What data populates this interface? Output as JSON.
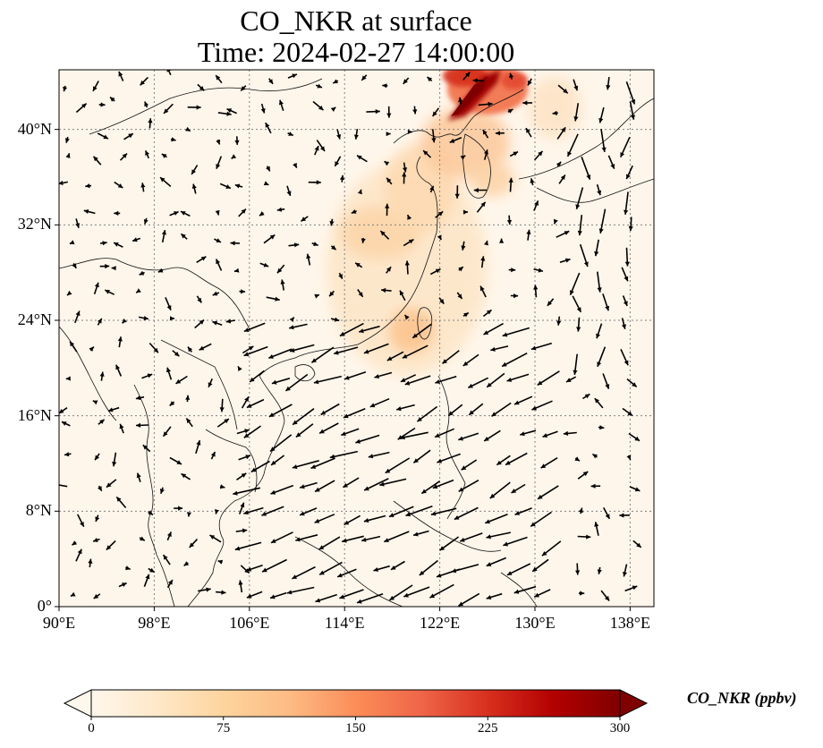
{
  "title": {
    "line1": "CO_NKR at surface",
    "line2": "Time: 2024-02-27 14:00:00"
  },
  "map": {
    "variable": "CO_NKR",
    "level": "surface",
    "lon_range": [
      90,
      140
    ],
    "lat_range": [
      0,
      45
    ],
    "lon_ticks": [
      {
        "value": 90,
        "label": "90°E"
      },
      {
        "value": 98,
        "label": "98°E"
      },
      {
        "value": 106,
        "label": "106°E"
      },
      {
        "value": 114,
        "label": "114°E"
      },
      {
        "value": 122,
        "label": "122°E"
      },
      {
        "value": 130,
        "label": "130°E"
      },
      {
        "value": 138,
        "label": "138°E"
      }
    ],
    "lat_ticks": [
      {
        "value": 0,
        "label": "0°"
      },
      {
        "value": 8,
        "label": "8°N"
      },
      {
        "value": 16,
        "label": "16°N"
      },
      {
        "value": 24,
        "label": "24°N"
      },
      {
        "value": 32,
        "label": "32°N"
      },
      {
        "value": 40,
        "label": "40°N"
      }
    ],
    "gridlines": "dotted",
    "colormap": "OrRd",
    "vectors": "wind arrows"
  },
  "colorbar": {
    "label": "CO_NKR (ppbv)",
    "min": 0,
    "max": 300,
    "extend": "both",
    "ticks": [
      {
        "value": 0,
        "label": "0"
      },
      {
        "value": 75,
        "label": "75"
      },
      {
        "value": 150,
        "label": "150"
      },
      {
        "value": 225,
        "label": "225"
      },
      {
        "value": 300,
        "label": "300"
      }
    ],
    "colors": [
      "#fff7ec",
      "#fee8c8",
      "#fdd49e",
      "#fdbb84",
      "#fc8d59",
      "#ef6548",
      "#d7301f",
      "#b30000",
      "#7f0000"
    ]
  }
}
